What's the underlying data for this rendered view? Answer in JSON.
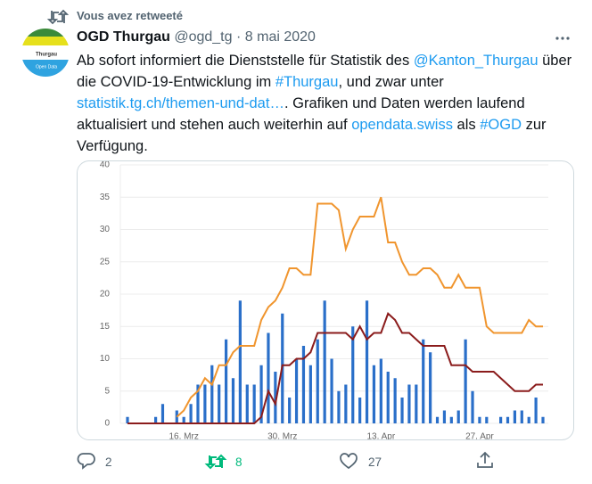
{
  "retweet_note": "Vous avez retweeté",
  "author": {
    "name": "OGD Thurgau",
    "handle": "@ogd_tg",
    "separator": "·",
    "date": "8 mai 2020"
  },
  "avatar_text": [
    "Thurgau",
    "Open Data"
  ],
  "text": [
    {
      "text": "Ab sofort informiert die Dienststelle für Statistik des ",
      "link": false
    },
    {
      "text": "@Kanton_Thurgau",
      "link": true
    },
    {
      "text": " über die COVID-19-Entwicklung im ",
      "link": false
    },
    {
      "text": "#Thurgau",
      "link": true
    },
    {
      "text": ", und zwar unter ",
      "link": false
    },
    {
      "text": "statistik.tg.ch/themen-und-dat…",
      "link": true
    },
    {
      "text": ". Grafiken und Daten werden laufend aktualisiert und stehen auch weiterhin auf ",
      "link": false
    },
    {
      "text": "opendata.swiss",
      "link": true
    },
    {
      "text": " als ",
      "link": false
    },
    {
      "text": "#OGD",
      "link": true
    },
    {
      "text": " zur Verfügung.",
      "link": false
    }
  ],
  "actions": {
    "replies": 2,
    "retweets": 8,
    "likes": 27
  },
  "chart_data": {
    "type": "bar-line",
    "categories": [
      null,
      null,
      null,
      null,
      null,
      null,
      null,
      null,
      "16. Mrz",
      null,
      null,
      null,
      null,
      null,
      null,
      null,
      null,
      null,
      null,
      null,
      null,
      null,
      "30. Mrz",
      null,
      null,
      null,
      null,
      null,
      null,
      null,
      null,
      null,
      null,
      null,
      null,
      null,
      "13. Apr",
      null,
      null,
      null,
      null,
      null,
      null,
      null,
      null,
      null,
      null,
      null,
      null,
      null,
      "27. Apr",
      null,
      null,
      null,
      null,
      null,
      null,
      null,
      null,
      null
    ],
    "series": [
      {
        "kind": "bar",
        "color": "#2a6fc9",
        "values": [
          1,
          0,
          0,
          0,
          1,
          3,
          0,
          2,
          1,
          3,
          6,
          6,
          9,
          6,
          13,
          7,
          19,
          6,
          6,
          9,
          14,
          8,
          17,
          4,
          10,
          12,
          9,
          13,
          19,
          10,
          5,
          6,
          15,
          4,
          19,
          9,
          10,
          8,
          7,
          4,
          6,
          6,
          13,
          11,
          1,
          2,
          1,
          2,
          13,
          5,
          1,
          1,
          0,
          1,
          1,
          2,
          2,
          1,
          4,
          1
        ]
      },
      {
        "kind": "line",
        "color": "#f0952e",
        "values": [
          null,
          null,
          null,
          null,
          null,
          null,
          null,
          1,
          2,
          4,
          5,
          7,
          6,
          9,
          9,
          11,
          12,
          12,
          12,
          16,
          18,
          19,
          21,
          24,
          24,
          23,
          23,
          34,
          34,
          34,
          33,
          27,
          30,
          32,
          32,
          32,
          35,
          28,
          28,
          25,
          23,
          23,
          24,
          24,
          23,
          21,
          21,
          23,
          21,
          21,
          21,
          15,
          14,
          14,
          14,
          14,
          14,
          16,
          15,
          15
        ]
      },
      {
        "kind": "line",
        "color": "#8b1c1c",
        "values": [
          0,
          0,
          0,
          0,
          0,
          0,
          0,
          0,
          0,
          0,
          0,
          0,
          0,
          0,
          0,
          0,
          0,
          0,
          0,
          1,
          5,
          3,
          9,
          9,
          10,
          10,
          11,
          14,
          14,
          14,
          14,
          14,
          13,
          15,
          13,
          14,
          14,
          17,
          16,
          14,
          14,
          13,
          12,
          12,
          12,
          12,
          9,
          9,
          9,
          8,
          8,
          8,
          8,
          7,
          6,
          5,
          5,
          5,
          6,
          6
        ]
      }
    ],
    "ylim": [
      0,
      40
    ],
    "yticks": [
      0,
      5,
      10,
      15,
      20,
      25,
      30,
      35,
      40
    ],
    "grid": true
  }
}
